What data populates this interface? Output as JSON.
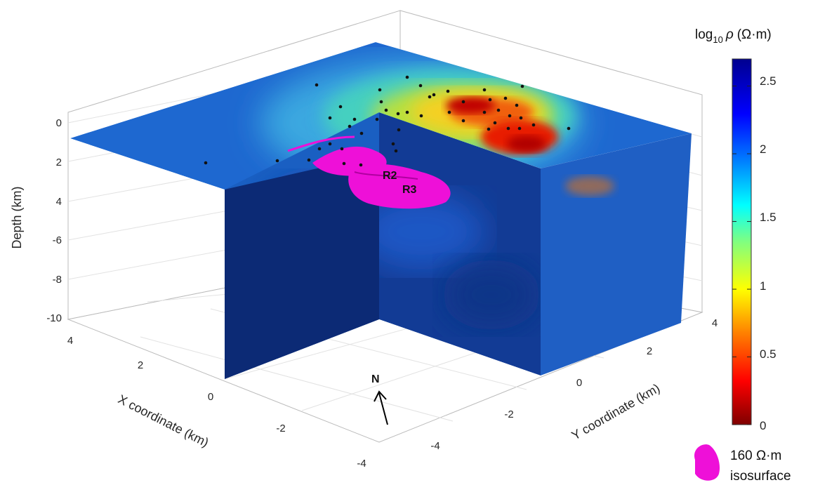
{
  "chart_data": {
    "type": "3d-volume-slice",
    "title": "",
    "axes": {
      "x": {
        "label": "X coordinate (km)",
        "ticks": [
          "4",
          "2",
          "0",
          "-2",
          "-4"
        ],
        "range": [
          -4,
          4
        ]
      },
      "y": {
        "label": "Y coordinate (km)",
        "ticks": [
          "-4",
          "-2",
          "0",
          "2",
          "4"
        ],
        "range": [
          -4,
          4
        ]
      },
      "z": {
        "label": "Depth (km)",
        "ticks": [
          "0",
          "2",
          "4",
          "-6",
          "-8",
          "-10"
        ],
        "range": [
          -10,
          0
        ]
      }
    },
    "grid": true,
    "colorbar": {
      "title_main": "log",
      "title_sub": "10",
      "title_rho": "ρ",
      "title_unit": "(Ω·m)",
      "ticks": [
        "2.5",
        "2",
        "1.5",
        "1",
        "0.5",
        "0"
      ],
      "range": [
        0,
        2.7
      ],
      "colors": [
        "#7f0000",
        "#ff0000",
        "#ff8000",
        "#ffff00",
        "#80ff80",
        "#00ffff",
        "#0080ff",
        "#0000ff",
        "#00008f"
      ]
    },
    "annotations": [
      {
        "text": "R2"
      },
      {
        "text": "R3"
      },
      {
        "text": "N"
      }
    ],
    "isosurface": {
      "value_line": "160 Ω·m",
      "label_line": "isosurface",
      "color": "#ee10d8"
    },
    "colors": {
      "deep": "#0b2a72",
      "surface_blue": "#1d63c8",
      "anomaly_red": "#cc0000",
      "isosurface": "#ee10d8",
      "station": "#111111"
    }
  }
}
